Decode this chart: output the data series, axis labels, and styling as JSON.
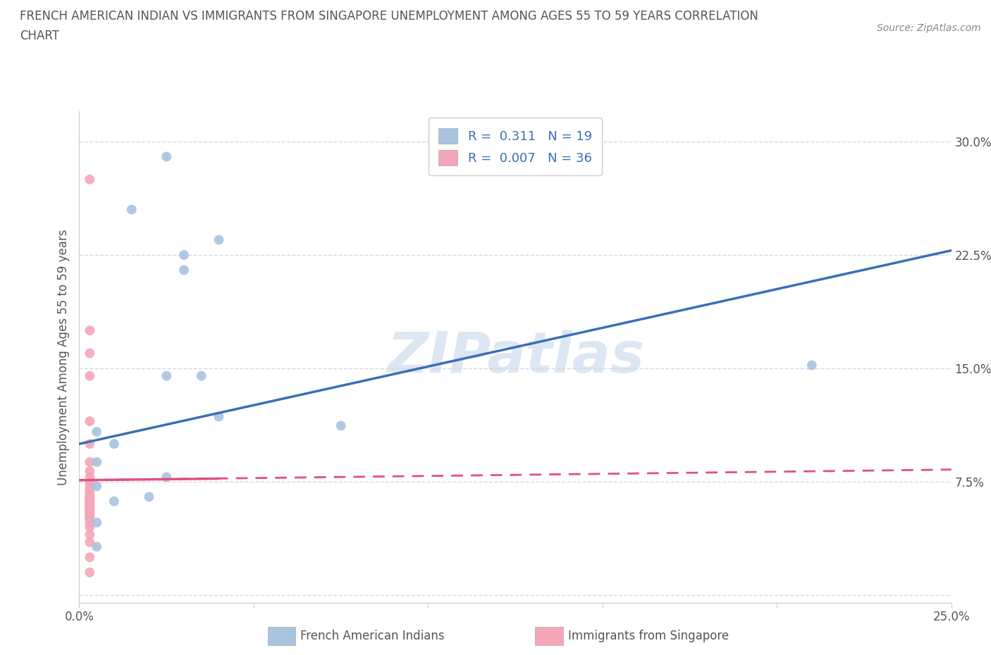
{
  "title_line1": "FRENCH AMERICAN INDIAN VS IMMIGRANTS FROM SINGAPORE UNEMPLOYMENT AMONG AGES 55 TO 59 YEARS CORRELATION",
  "title_line2": "CHART",
  "source": "Source: ZipAtlas.com",
  "ylabel": "Unemployment Among Ages 55 to 59 years",
  "xlim": [
    0.0,
    0.25
  ],
  "ylim": [
    -0.005,
    0.32
  ],
  "yticks": [
    0.0,
    0.075,
    0.15,
    0.225,
    0.3
  ],
  "ytick_labels": [
    "",
    "7.5%",
    "15.0%",
    "22.5%",
    "30.0%"
  ],
  "xticks": [
    0.0,
    0.05,
    0.1,
    0.15,
    0.2,
    0.25
  ],
  "xtick_labels": [
    "0.0%",
    "",
    "",
    "",
    "",
    "25.0%"
  ],
  "blue_scatter_x": [
    0.025,
    0.015,
    0.04,
    0.03,
    0.03,
    0.025,
    0.035,
    0.04,
    0.005,
    0.01,
    0.005,
    0.025,
    0.075,
    0.21,
    0.005,
    0.02,
    0.01,
    0.005,
    0.005
  ],
  "blue_scatter_y": [
    0.29,
    0.255,
    0.235,
    0.225,
    0.215,
    0.145,
    0.145,
    0.118,
    0.108,
    0.1,
    0.088,
    0.078,
    0.112,
    0.152,
    0.072,
    0.065,
    0.062,
    0.048,
    0.032
  ],
  "pink_scatter_x": [
    0.003,
    0.003,
    0.003,
    0.003,
    0.003,
    0.003,
    0.003,
    0.003,
    0.003,
    0.003,
    0.003,
    0.003,
    0.003,
    0.003,
    0.003,
    0.003,
    0.003,
    0.003,
    0.003,
    0.003,
    0.003,
    0.003,
    0.003,
    0.003,
    0.003,
    0.003,
    0.003,
    0.003,
    0.003,
    0.003,
    0.003,
    0.003,
    0.003,
    0.003,
    0.003,
    0.003
  ],
  "pink_scatter_y": [
    0.275,
    0.175,
    0.16,
    0.145,
    0.115,
    0.1,
    0.088,
    0.082,
    0.078,
    0.075,
    0.072,
    0.07,
    0.068,
    0.066,
    0.065,
    0.064,
    0.063,
    0.062,
    0.061,
    0.06,
    0.059,
    0.058,
    0.057,
    0.056,
    0.055,
    0.054,
    0.053,
    0.052,
    0.051,
    0.05,
    0.048,
    0.045,
    0.04,
    0.035,
    0.025,
    0.015
  ],
  "blue_line_x": [
    0.0,
    0.25
  ],
  "blue_line_y": [
    0.1,
    0.228
  ],
  "pink_line_x": [
    0.0,
    0.25
  ],
  "pink_line_y": [
    0.076,
    0.083
  ],
  "pink_solid_line_x": [
    0.0,
    0.04
  ],
  "pink_solid_line_y": [
    0.076,
    0.077
  ],
  "blue_color": "#a8c4e0",
  "pink_color": "#f4a7b9",
  "blue_line_color": "#3b6fb5",
  "pink_line_color": "#e05080",
  "R_blue": "0.311",
  "N_blue": "19",
  "R_pink": "0.007",
  "N_pink": "36",
  "legend_label_blue": "French American Indians",
  "legend_label_pink": "Immigrants from Singapore",
  "watermark": "ZIPatlas",
  "scatter_size": 100,
  "grid_color": "#d8d8d8",
  "background_color": "#ffffff"
}
